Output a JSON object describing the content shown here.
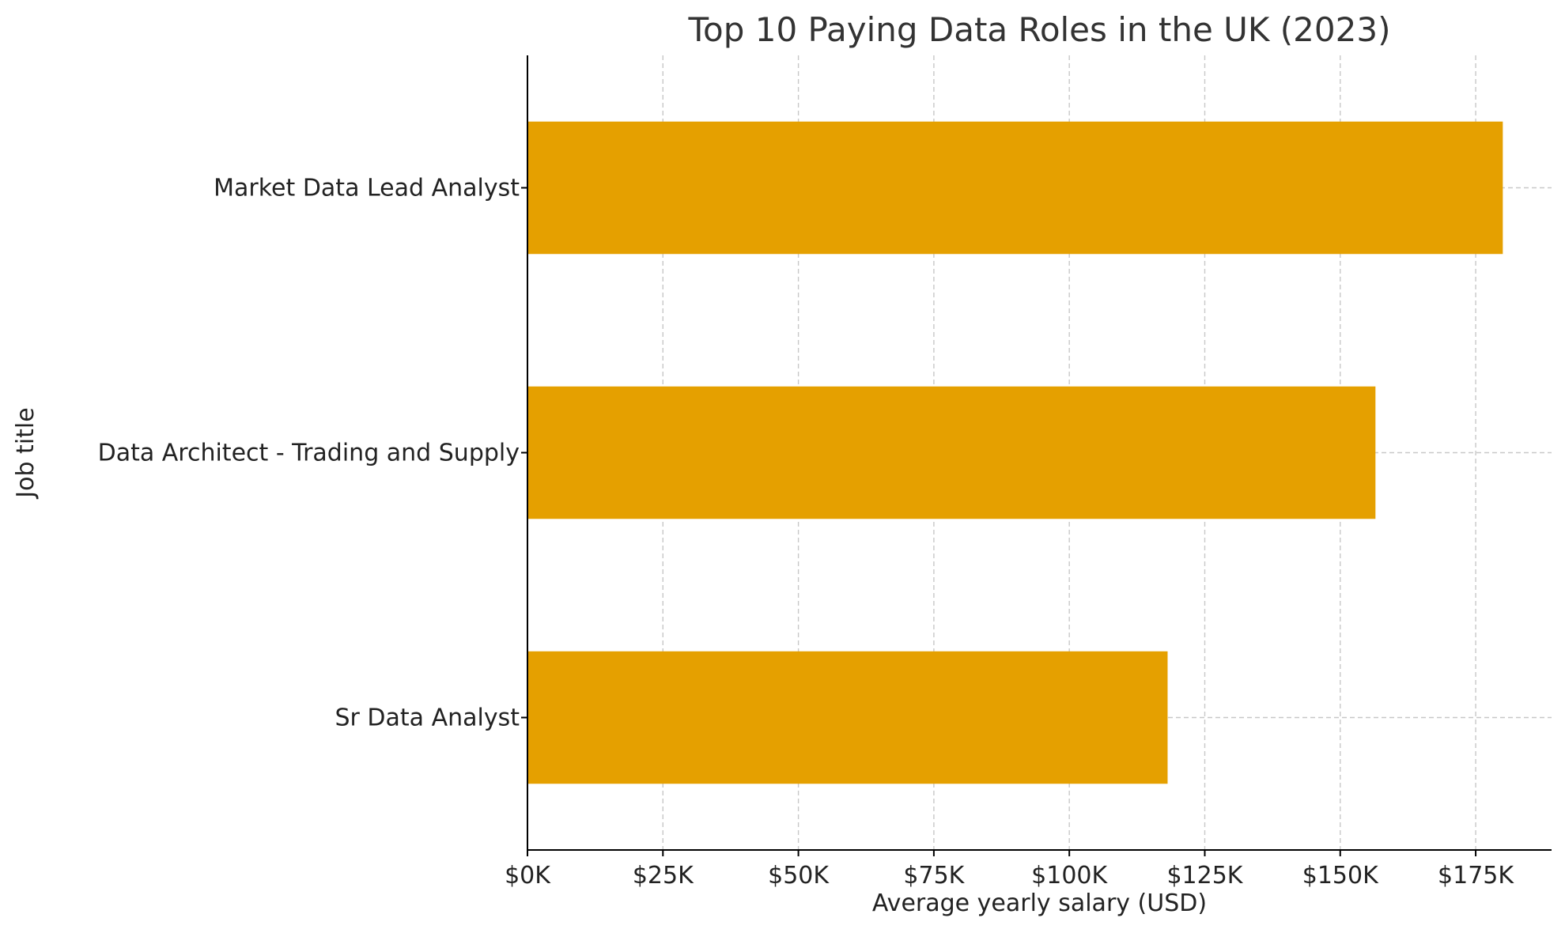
{
  "chart_data": {
    "type": "bar",
    "orientation": "horizontal",
    "title": "Top 10 Paying Data Roles in the UK (2023)",
    "xlabel": "Average yearly salary (USD)",
    "ylabel": "Job title",
    "categories": [
      "Market Data Lead Analyst",
      "Data Architect - Trading and Supply",
      "Sr Data Analyst"
    ],
    "values": [
      180000,
      156500,
      118140
    ],
    "xlim": [
      0,
      189000
    ],
    "xticks": [
      0,
      25000,
      50000,
      75000,
      100000,
      125000,
      150000,
      175000
    ],
    "xtick_labels": [
      "$0K",
      "$25K",
      "$50K",
      "$75K",
      "$100K",
      "$125K",
      "$150K",
      "$175K"
    ],
    "bar_color": "#E5A000",
    "grid": true,
    "grid_style": "dashed"
  }
}
